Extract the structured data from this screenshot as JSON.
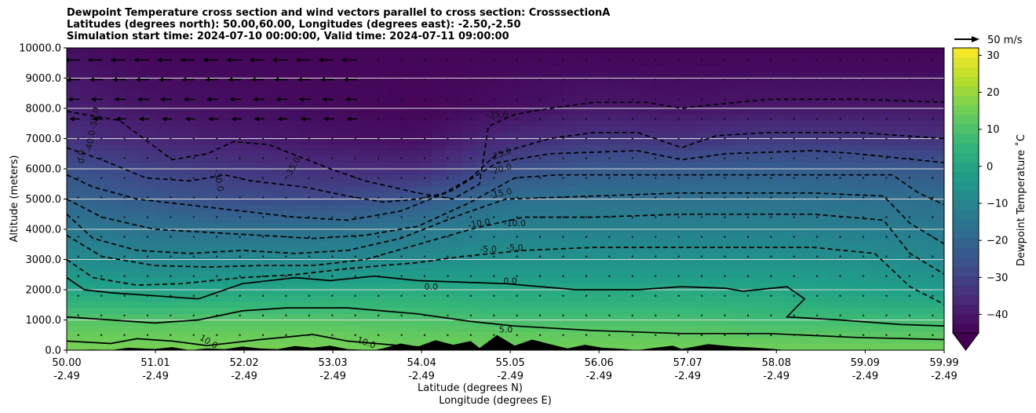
{
  "chart_data": {
    "type": "heatmap",
    "title_lines": [
      "Dewpoint Temperature cross section and wind vectors parallel to cross section: CrosssectionA",
      "Latitudes (degrees north): 50.00,60.00, Longitudes (degrees east): -2.50,-2.50",
      "Simulation start time: 2024-07-10 00:00:00, Valid time: 2024-07-11 09:00:00"
    ],
    "ylabel": "Altitude (meters)",
    "xlabel_lines": [
      "Latitude (degrees N)",
      "Longitude (degrees E)"
    ],
    "ylim": [
      0,
      10000
    ],
    "yticks": [
      "0.0",
      "1000.0",
      "2000.0",
      "3000.0",
      "4000.0",
      "5000.0",
      "6000.0",
      "7000.0",
      "8000.0",
      "9000.0",
      "10000.0"
    ],
    "xticks_lat": [
      "50.00",
      "51.01",
      "52.02",
      "53.03",
      "54.04",
      "55.05",
      "56.06",
      "57.07",
      "58.08",
      "59.09",
      "59.99"
    ],
    "xticks_lon": [
      "-2.49",
      "-2.49",
      "-2.49",
      "-2.49",
      "-2.49",
      "-2.49",
      "-2.49",
      "-2.49",
      "-2.49",
      "-2.49",
      "-2.49"
    ],
    "grid": "horizontal",
    "colorbar": {
      "label": "Dewpoint Temperature ˚C",
      "ticks": [
        "−40",
        "−30",
        "−20",
        "−10",
        "0",
        "10",
        "20",
        "30"
      ],
      "range": [
        -45,
        32
      ],
      "colormap": "viridis",
      "extend": "min"
    },
    "quiver_key": {
      "label": "50 m/s",
      "speed": 50
    },
    "contour_labels": [
      "-35.0",
      "-40.0",
      "0.0",
      "-30.0",
      "-35.0",
      "-35.0",
      "-25.0",
      "-20.0",
      "-15.0",
      "-10.0",
      "-10.0",
      "-5.0",
      "-5.0",
      "0.0",
      "0.0",
      "5.0",
      "10.0",
      "10.0"
    ],
    "profile_altitudes": [
      0,
      500,
      1000,
      1500,
      2000,
      2500,
      3000,
      4000,
      5000,
      6000,
      7000,
      8000,
      10000
    ],
    "profile_columns": [
      {
        "lat": 50.0,
        "dewpoint": [
          16,
          14,
          11,
          6,
          0,
          -4,
          -8,
          -14,
          -20,
          -26,
          -34,
          -38,
          -42
        ]
      },
      {
        "lat": 51.0,
        "dewpoint": [
          16,
          14,
          11,
          5,
          -1,
          -6,
          -10,
          -16,
          -24,
          -30,
          -37,
          -41,
          -44
        ]
      },
      {
        "lat": 52.0,
        "dewpoint": [
          16,
          14,
          11,
          6,
          0,
          -5,
          -9,
          -17,
          -27,
          -33,
          -39,
          -42,
          -44
        ]
      },
      {
        "lat": 53.0,
        "dewpoint": [
          16,
          14,
          11,
          6,
          1,
          -4,
          -9,
          -16,
          -28,
          -35,
          -41,
          -43,
          -44
        ]
      },
      {
        "lat": 54.0,
        "dewpoint": [
          15,
          13,
          10,
          6,
          2,
          -3,
          -8,
          -14,
          -24,
          -36,
          -42,
          -44,
          -44
        ]
      },
      {
        "lat": 55.0,
        "dewpoint": [
          15,
          13,
          9,
          5,
          1,
          -3,
          -6,
          -11,
          -17,
          -27,
          -36,
          -42,
          -44
        ]
      },
      {
        "lat": 56.0,
        "dewpoint": [
          15,
          13,
          9,
          5,
          1,
          -3,
          -6,
          -11,
          -16,
          -23,
          -33,
          -40,
          -44
        ]
      },
      {
        "lat": 57.0,
        "dewpoint": [
          15,
          13,
          9,
          5,
          1,
          -3,
          -6,
          -11,
          -16,
          -23,
          -34,
          -41,
          -44
        ]
      },
      {
        "lat": 58.0,
        "dewpoint": [
          15,
          12,
          8,
          4,
          0,
          -3,
          -6,
          -11,
          -16,
          -22,
          -32,
          -40,
          -44
        ]
      },
      {
        "lat": 59.0,
        "dewpoint": [
          15,
          12,
          8,
          3,
          -1,
          -4,
          -7,
          -12,
          -17,
          -23,
          -33,
          -40,
          -44
        ]
      },
      {
        "lat": 60.0,
        "dewpoint": [
          15,
          12,
          8,
          2,
          -3,
          -6,
          -9,
          -13,
          -18,
          -24,
          -34,
          -40,
          -44
        ]
      }
    ],
    "contours": [
      {
        "level": -35,
        "pts": [
          [
            50.0,
            7900
          ],
          [
            50.6,
            7600
          ],
          [
            51.2,
            6300
          ],
          [
            51.6,
            6500
          ],
          [
            51.9,
            6900
          ],
          [
            52.3,
            6800
          ],
          [
            53.0,
            6000
          ],
          [
            53.4,
            5600
          ],
          [
            54.0,
            5200
          ],
          [
            54.4,
            5000
          ],
          [
            54.7,
            5500
          ],
          [
            54.8,
            7400
          ],
          [
            55.1,
            7800
          ],
          [
            55.5,
            8000
          ],
          [
            56.0,
            8200
          ],
          [
            56.6,
            8200
          ],
          [
            57.0,
            8000
          ],
          [
            57.3,
            8100
          ],
          [
            58.0,
            8300
          ],
          [
            59.0,
            8300
          ],
          [
            60.0,
            8200
          ]
        ]
      },
      {
        "level": -30,
        "pts": [
          [
            50.0,
            6700
          ],
          [
            50.4,
            6300
          ],
          [
            50.9,
            5700
          ],
          [
            51.4,
            5600
          ],
          [
            51.8,
            5800
          ],
          [
            52.1,
            5600
          ],
          [
            52.7,
            5400
          ],
          [
            53.2,
            5100
          ],
          [
            53.6,
            4900
          ],
          [
            54.0,
            5000
          ],
          [
            54.3,
            5200
          ],
          [
            54.6,
            5700
          ],
          [
            54.9,
            6500
          ],
          [
            55.5,
            7000
          ],
          [
            56.0,
            7200
          ],
          [
            56.5,
            7200
          ],
          [
            57.0,
            6700
          ],
          [
            57.4,
            7100
          ],
          [
            58.0,
            7200
          ],
          [
            59.0,
            7200
          ],
          [
            60.0,
            7000
          ]
        ]
      },
      {
        "level": -25,
        "pts": [
          [
            50.0,
            5800
          ],
          [
            50.3,
            5400
          ],
          [
            50.8,
            5000
          ],
          [
            51.4,
            4800
          ],
          [
            52.0,
            4600
          ],
          [
            52.6,
            4400
          ],
          [
            53.2,
            4300
          ],
          [
            53.8,
            4600
          ],
          [
            54.4,
            5300
          ],
          [
            54.9,
            6200
          ],
          [
            55.5,
            6500
          ],
          [
            56.5,
            6600
          ],
          [
            57.0,
            6300
          ],
          [
            57.5,
            6500
          ],
          [
            58.5,
            6600
          ],
          [
            59.0,
            6500
          ],
          [
            60.0,
            6200
          ]
        ]
      },
      {
        "level": -20,
        "pts": [
          [
            50.0,
            5000
          ],
          [
            50.4,
            4400
          ],
          [
            51.0,
            4000
          ],
          [
            51.6,
            3900
          ],
          [
            52.2,
            3800
          ],
          [
            52.8,
            3700
          ],
          [
            53.4,
            3800
          ],
          [
            54.0,
            4100
          ],
          [
            54.6,
            4900
          ],
          [
            55.1,
            5700
          ],
          [
            55.6,
            5800
          ],
          [
            57.0,
            5800
          ],
          [
            58.5,
            5800
          ],
          [
            59.4,
            5800
          ],
          [
            59.7,
            5200
          ],
          [
            60.0,
            4800
          ]
        ]
      },
      {
        "level": -15,
        "pts": [
          [
            50.0,
            4500
          ],
          [
            50.3,
            3700
          ],
          [
            50.8,
            3300
          ],
          [
            51.4,
            3200
          ],
          [
            52.0,
            3300
          ],
          [
            52.6,
            3200
          ],
          [
            53.2,
            3300
          ],
          [
            53.8,
            3700
          ],
          [
            54.5,
            4500
          ],
          [
            55.0,
            5000
          ],
          [
            56.0,
            5100
          ],
          [
            57.0,
            5200
          ],
          [
            58.5,
            5200
          ],
          [
            59.3,
            5100
          ],
          [
            59.6,
            4200
          ],
          [
            60.0,
            3500
          ]
        ]
      },
      {
        "level": -10,
        "pts": [
          [
            50.0,
            3800
          ],
          [
            50.4,
            3100
          ],
          [
            51.0,
            2800
          ],
          [
            51.6,
            2750
          ],
          [
            52.2,
            2800
          ],
          [
            52.8,
            2800
          ],
          [
            53.4,
            3000
          ],
          [
            54.0,
            3500
          ],
          [
            54.6,
            4000
          ],
          [
            55.2,
            4400
          ],
          [
            56.0,
            4400
          ],
          [
            57.0,
            4500
          ],
          [
            58.5,
            4500
          ],
          [
            59.3,
            4300
          ],
          [
            59.6,
            3200
          ],
          [
            60.0,
            2500
          ]
        ]
      },
      {
        "level": -5,
        "pts": [
          [
            50.0,
            3000
          ],
          [
            50.3,
            2400
          ],
          [
            50.8,
            2150
          ],
          [
            51.3,
            2200
          ],
          [
            52.0,
            2400
          ],
          [
            52.6,
            2500
          ],
          [
            53.2,
            2700
          ],
          [
            54.0,
            2900
          ],
          [
            54.5,
            3100
          ],
          [
            55.2,
            3300
          ],
          [
            56.0,
            3400
          ],
          [
            57.0,
            3400
          ],
          [
            58.5,
            3400
          ],
          [
            59.2,
            3200
          ],
          [
            59.6,
            2100
          ],
          [
            60.0,
            1500
          ]
        ]
      },
      {
        "level": 0,
        "pts": [
          [
            50.0,
            2400
          ],
          [
            50.2,
            2000
          ],
          [
            50.5,
            1900
          ],
          [
            51.0,
            1800
          ],
          [
            51.5,
            1700
          ],
          [
            52.0,
            2200
          ],
          [
            52.6,
            2400
          ],
          [
            53.0,
            2300
          ],
          [
            53.5,
            2450
          ],
          [
            54.0,
            2300
          ],
          [
            55.0,
            2200
          ],
          [
            55.8,
            2000
          ],
          [
            56.5,
            2000
          ],
          [
            57.0,
            2100
          ],
          [
            57.5,
            2050
          ],
          [
            57.7,
            1950
          ],
          [
            58.2,
            2100
          ],
          [
            58.4,
            1700
          ],
          [
            58.2,
            1100
          ],
          [
            58.8,
            1000
          ],
          [
            59.5,
            850
          ],
          [
            60.0,
            800
          ]
        ]
      },
      {
        "level": 5,
        "pts": [
          [
            50.0,
            1100
          ],
          [
            50.5,
            1000
          ],
          [
            51.0,
            900
          ],
          [
            51.5,
            1000
          ],
          [
            52.0,
            1300
          ],
          [
            52.5,
            1400
          ],
          [
            53.2,
            1400
          ],
          [
            54.0,
            1200
          ],
          [
            54.6,
            950
          ],
          [
            55.1,
            800
          ],
          [
            56.0,
            650
          ],
          [
            57.0,
            550
          ],
          [
            58.0,
            550
          ],
          [
            59.0,
            420
          ],
          [
            60.0,
            350
          ]
        ]
      },
      {
        "level": 10,
        "pts": [
          [
            50.0,
            300
          ],
          [
            50.5,
            220
          ],
          [
            50.8,
            380
          ],
          [
            51.2,
            300
          ],
          [
            51.6,
            150
          ],
          [
            52.2,
            350
          ],
          [
            52.8,
            520
          ],
          [
            53.2,
            300
          ],
          [
            53.8,
            150
          ],
          [
            54.4,
            30
          ]
        ]
      }
    ]
  }
}
